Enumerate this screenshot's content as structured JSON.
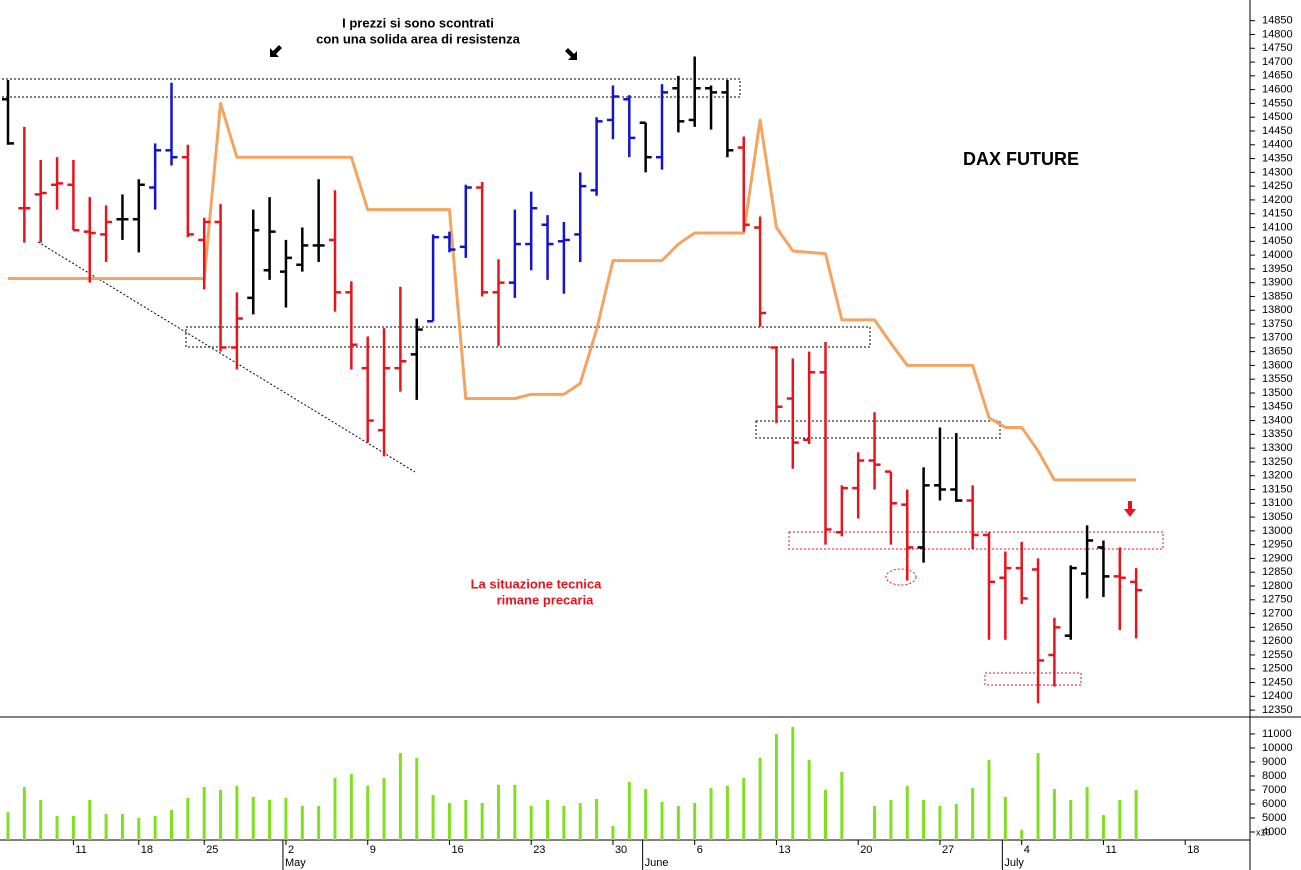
{
  "chart_data": [
    {
      "type": "ohlc",
      "title": "DAX FUTURE",
      "annotations": [
        {
          "text": [
            "I prezzi si sono scontrati",
            "con una solida area di resistenza"
          ],
          "color": "#000000"
        },
        {
          "text": [
            "La situazione tecnica",
            "rimane precaria"
          ],
          "color": "#e8141c"
        }
      ],
      "categories": [
        null,
        null,
        null,
        null,
        "11",
        null,
        null,
        null,
        "18",
        null,
        null,
        null,
        "25",
        null,
        null,
        null,
        null,
        "2",
        null,
        null,
        null,
        null,
        "9",
        null,
        null,
        null,
        null,
        "16",
        null,
        null,
        null,
        null,
        "23",
        null,
        null,
        null,
        null,
        "30",
        null,
        null,
        null,
        null,
        "6",
        null,
        null,
        null,
        null,
        "13",
        null,
        null,
        null,
        null,
        "20",
        null,
        null,
        null,
        null,
        "27",
        null,
        null,
        null,
        null,
        "4",
        null,
        null,
        null,
        null,
        "11",
        null,
        null,
        null,
        null,
        "18",
        null
      ],
      "month_labels": [
        {
          "label": "May",
          "category": 17
        },
        {
          "label": "June",
          "category": 39
        },
        {
          "label": "July",
          "category": 61
        }
      ],
      "open": [
        14565,
        14170,
        14220,
        14255,
        14255,
        14085,
        14075,
        14130,
        14130,
        14245,
        14380,
        14355,
        14055,
        14120,
        13665,
        13845,
        13945,
        13940,
        13965,
        14035,
        14055,
        13865,
        13590,
        13365,
        13590,
        13640,
        13760,
        14065,
        14030,
        14245,
        13865,
        13900,
        14040,
        14110,
        14050,
        14075,
        14235,
        14490,
        14565,
        14480,
        14355,
        14605,
        14490,
        14605,
        14590,
        14390,
        14100,
        13665,
        13480,
        13330,
        13575,
        12995,
        13155,
        13255,
        13215,
        13095,
        12940,
        13165,
        13150,
        13110,
        12985,
        12830,
        12865,
        12860,
        12550,
        12620,
        12845,
        12940,
        12835,
        12815,
        null,
        null,
        null,
        null
      ],
      "high": [
        14635,
        14465,
        14345,
        14355,
        14345,
        14210,
        14180,
        14220,
        14275,
        14405,
        14625,
        14400,
        14135,
        14185,
        13865,
        14165,
        14210,
        14055,
        14100,
        14275,
        14235,
        13905,
        13705,
        13735,
        13885,
        13770,
        14075,
        14085,
        14255,
        14265,
        13985,
        14165,
        14230,
        14145,
        14120,
        14300,
        14500,
        14615,
        14580,
        14480,
        14620,
        14650,
        14720,
        14615,
        14635,
        14430,
        14140,
        13665,
        13625,
        13650,
        13685,
        13165,
        13285,
        13430,
        13215,
        13150,
        13230,
        13375,
        13355,
        13165,
        12995,
        12925,
        12960,
        12900,
        12685,
        12875,
        13020,
        12965,
        12940,
        12865,
        null,
        null,
        null,
        null
      ],
      "low": [
        14400,
        14045,
        14045,
        14165,
        14090,
        13900,
        13975,
        14055,
        14010,
        14165,
        14325,
        14065,
        13875,
        13650,
        13585,
        13785,
        13910,
        13810,
        13940,
        13975,
        13795,
        13585,
        13320,
        13270,
        13505,
        13475,
        13760,
        14010,
        13990,
        13850,
        13670,
        13845,
        13945,
        13910,
        13860,
        13975,
        14215,
        14420,
        14355,
        14300,
        14310,
        14445,
        14465,
        14455,
        14355,
        14085,
        13740,
        13390,
        13225,
        13315,
        12950,
        12980,
        13045,
        13150,
        12950,
        12820,
        12885,
        13110,
        13105,
        12935,
        12605,
        12605,
        12735,
        12375,
        12435,
        12605,
        12755,
        12760,
        12640,
        12610,
        null,
        null,
        null,
        null
      ],
      "close": [
        14405,
        14170,
        14225,
        14260,
        14090,
        14080,
        14120,
        14130,
        14255,
        14380,
        14355,
        14075,
        14120,
        13665,
        13770,
        14090,
        14085,
        13990,
        14035,
        14035,
        13865,
        13675,
        13400,
        13590,
        13615,
        13730,
        14065,
        14020,
        14245,
        13865,
        13900,
        14040,
        14170,
        14040,
        14055,
        14250,
        14485,
        14575,
        14425,
        14355,
        14590,
        14485,
        14605,
        14590,
        14380,
        14110,
        13790,
        13450,
        13320,
        13575,
        13005,
        13155,
        13255,
        13240,
        13100,
        12940,
        13165,
        13150,
        13110,
        12985,
        12815,
        12865,
        12755,
        12530,
        12650,
        12865,
        12965,
        12835,
        12830,
        12785,
        null,
        null,
        null,
        null
      ],
      "bar_colors": [
        "#000000",
        "#e8141c",
        "#e8141c",
        "#e8141c",
        "#e8141c",
        "#e8141c",
        "#e8141c",
        "#000000",
        "#000000",
        "#1414c8",
        "#1414c8",
        "#e8141c",
        "#e8141c",
        "#e8141c",
        "#e8141c",
        "#000000",
        "#000000",
        "#000000",
        "#000000",
        "#000000",
        "#e8141c",
        "#e8141c",
        "#e8141c",
        "#e8141c",
        "#e8141c",
        "#000000",
        "#1414c8",
        "#1414c8",
        "#1414c8",
        "#e8141c",
        "#e8141c",
        "#1414c8",
        "#1414c8",
        "#1414c8",
        "#1414c8",
        "#1414c8",
        "#1414c8",
        "#1414c8",
        "#1414c8",
        "#000000",
        "#1414c8",
        "#000000",
        "#000000",
        "#000000",
        "#000000",
        "#e8141c",
        "#e8141c",
        "#e8141c",
        "#e8141c",
        "#e8141c",
        "#e8141c",
        "#e8141c",
        "#e8141c",
        "#e8141c",
        "#e8141c",
        "#e8141c",
        "#000000",
        "#000000",
        "#000000",
        "#e8141c",
        "#e8141c",
        "#e8141c",
        "#e8141c",
        "#e8141c",
        "#e8141c",
        "#000000",
        "#000000",
        "#000000",
        "#e8141c",
        "#e8141c",
        null,
        null,
        null,
        null
      ],
      "stop_line": {
        "color": "#f4a460",
        "values": [
          13915,
          13915,
          13915,
          13915,
          13915,
          13915,
          13915,
          13915,
          13915,
          13915,
          13915,
          13915,
          13915,
          14550,
          14355,
          14355,
          14355,
          14355,
          14355,
          14355,
          14355,
          14355,
          14165,
          14165,
          14165,
          14165,
          14165,
          14165,
          13480,
          13480,
          13480,
          13480,
          13495,
          13495,
          13495,
          13535,
          13730,
          13980,
          13980,
          13980,
          13980,
          14040,
          14080,
          14080,
          14080,
          14080,
          14490,
          14100,
          14015,
          14010,
          14005,
          13765,
          13765,
          13765,
          13680,
          13600,
          13600,
          13600,
          13600,
          13600,
          13410,
          13375,
          13375,
          13290,
          13185,
          13185,
          13185,
          13185,
          13185,
          13185,
          null,
          null,
          null,
          null
        ]
      },
      "ylim": [
        12325,
        14925
      ],
      "yticks": [
        12350,
        12400,
        12450,
        12500,
        12550,
        12600,
        12650,
        12700,
        12750,
        12800,
        12850,
        12900,
        12950,
        13000,
        13050,
        13100,
        13150,
        13200,
        13250,
        13300,
        13350,
        13400,
        13450,
        13500,
        13550,
        13600,
        13650,
        13700,
        13750,
        13800,
        13850,
        13900,
        13950,
        14000,
        14050,
        14100,
        14150,
        14200,
        14250,
        14300,
        14350,
        14400,
        14450,
        14500,
        14550,
        14600,
        14650,
        14700,
        14750,
        14800,
        14850
      ]
    },
    {
      "type": "bar",
      "axis_label": "x10",
      "color": "#80e020",
      "values": [
        5430,
        7210,
        6290,
        5140,
        5140,
        6290,
        5290,
        5290,
        5000,
        5140,
        5570,
        6430,
        7210,
        7000,
        7290,
        6500,
        6290,
        6430,
        5860,
        5860,
        7860,
        8140,
        7290,
        7860,
        9640,
        9290,
        6640,
        6070,
        6290,
        6070,
        7360,
        7360,
        5860,
        6290,
        5860,
        6070,
        6360,
        4430,
        7570,
        7070,
        6140,
        5860,
        6070,
        7140,
        7290,
        7860,
        9290,
        11000,
        11500,
        9140,
        7000,
        8290,
        null,
        5860,
        6290,
        7290,
        6290,
        5860,
        6000,
        7140,
        9140,
        6500,
        4140,
        9640,
        7070,
        6290,
        7210,
        5210,
        6290,
        7000,
        null,
        null,
        null,
        null
      ],
      "ylim": [
        3430,
        12210
      ],
      "yticks": [
        4000,
        5000,
        6000,
        7000,
        8000,
        9000,
        10000,
        11000
      ]
    }
  ]
}
